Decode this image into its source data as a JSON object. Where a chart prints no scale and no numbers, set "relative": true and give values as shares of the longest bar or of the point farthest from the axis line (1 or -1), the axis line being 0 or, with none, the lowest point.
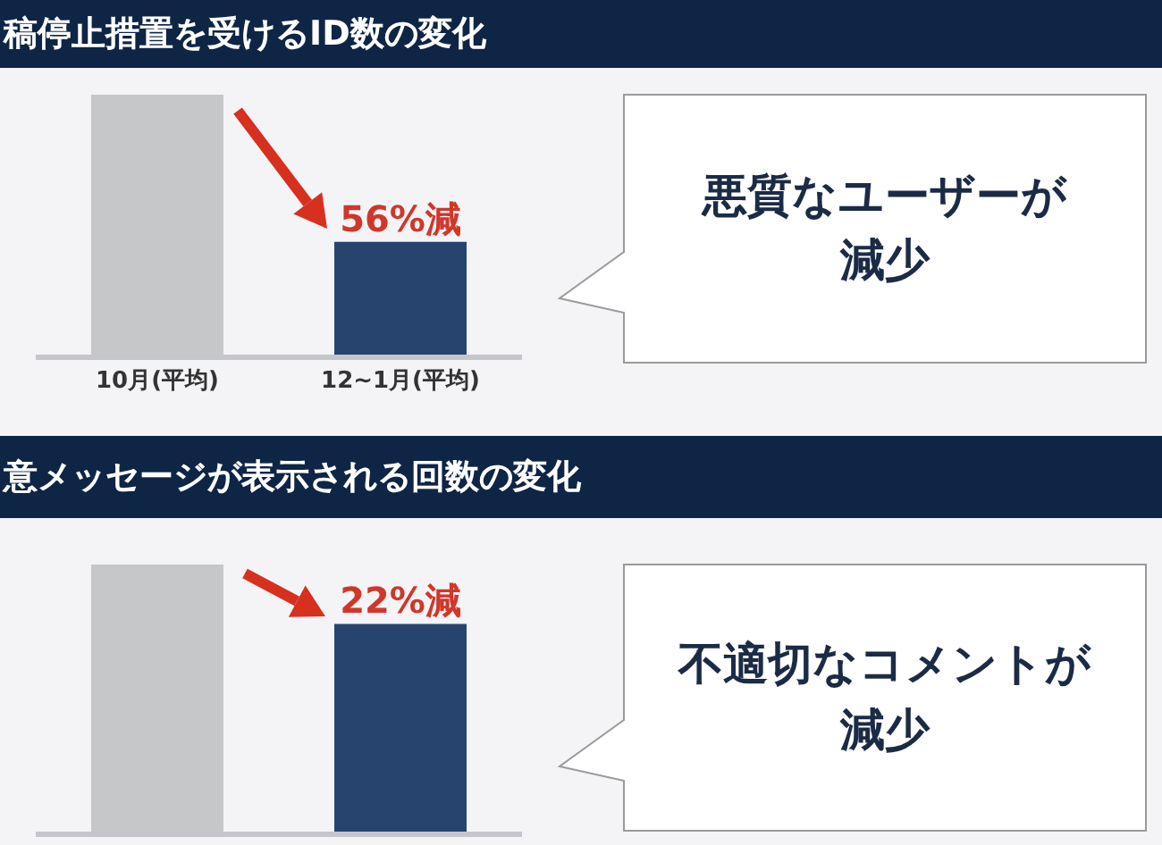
{
  "chart_data": [
    {
      "type": "bar",
      "title": "稿停止措置を受けるID数の変化",
      "categories": [
        "10月(平均)",
        "12~1月(平均)"
      ],
      "values": [
        1,
        0.44
      ],
      "colors": [
        "#c6c7c9",
        "#27446f"
      ],
      "relative": true,
      "annotations": [
        "56%減",
        "悪質なユーザーが減少"
      ]
    },
    {
      "type": "bar",
      "title": "意メッセージが表示される回数の変化",
      "categories": [
        null,
        null
      ],
      "values": [
        1,
        0.78
      ],
      "colors": [
        "#c6c7c9",
        "#27446f"
      ],
      "relative": true,
      "annotations": [
        "22%減",
        "不適切なコメントが減少"
      ]
    }
  ]
}
